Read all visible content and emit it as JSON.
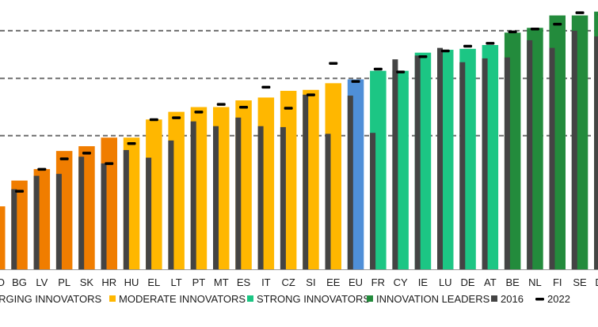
{
  "chart_data": {
    "type": "bar",
    "categories": [
      "RO",
      "BG",
      "LV",
      "PL",
      "SK",
      "HR",
      "HU",
      "EL",
      "LT",
      "PT",
      "MT",
      "ES",
      "IT",
      "CZ",
      "SI",
      "EE",
      "EU",
      "FR",
      "CY",
      "IE",
      "LU",
      "DE",
      "AT",
      "BE",
      "NL",
      "FI",
      "SE",
      "DK"
    ],
    "groups": [
      "EMERGING",
      "EMERGING",
      "EMERGING",
      "EMERGING",
      "EMERGING",
      "EMERGING",
      "MODERATE",
      "MODERATE",
      "MODERATE",
      "MODERATE",
      "MODERATE",
      "MODERATE",
      "MODERATE",
      "MODERATE",
      "MODERATE",
      "MODERATE",
      "EU",
      "STRONG",
      "STRONG",
      "STRONG",
      "STRONG",
      "STRONG",
      "STRONG",
      "LEADER",
      "LEADER",
      "LEADER",
      "LEADER",
      "LEADER"
    ],
    "series": [
      {
        "values": [
          33.0,
          46.5,
          52.5,
          62.0,
          64.5,
          69.0,
          69.0,
          78.5,
          82.5,
          85.0,
          85.0,
          88.5,
          90.0,
          93.5,
          94.0,
          97.5,
          99.5,
          104.0,
          104.0,
          113.5,
          115.0,
          115.5,
          117.5,
          124.0,
          126.5,
          133.0,
          133.0,
          135.0
        ]
      },
      {
        "name": "2016",
        "values": [
          0,
          42.0,
          49.0,
          50.0,
          59.0,
          55.5,
          62.5,
          58.5,
          67.5,
          77.5,
          75.0,
          79.5,
          75.0,
          74.5,
          91.5,
          71.0,
          91.0,
          71.5,
          110.0,
          112.0,
          116.0,
          108.5,
          110.5,
          111.0,
          120.0,
          116.0,
          125.0,
          122.0
        ]
      },
      {
        "name": "2022",
        "values": [
          0,
          41.0,
          52.5,
          58.0,
          61.0,
          55.5,
          66.0,
          78.5,
          79.5,
          82.5,
          86.5,
          85.0,
          95.5,
          84.5,
          91.5,
          108.0,
          98.5,
          105.0,
          103.5,
          111.5,
          114.5,
          117.0,
          118.5,
          124.5,
          126.0,
          128.5,
          134.5,
          133.5
        ]
      }
    ],
    "gridlines": [
      70,
      100,
      125
    ],
    "grid": "dashed horizontal",
    "ylim": [
      0,
      140
    ],
    "legend": [
      {
        "name": "EMERGING INNOVATORS",
        "color": "#f07d00"
      },
      {
        "name": "MODERATE INNOVATORS",
        "color": "#ffb700"
      },
      {
        "name": "STRONG INNOVATORS",
        "color": "#1cc684"
      },
      {
        "name": "INNOVATION LEADERS",
        "color": "#238b3c"
      },
      {
        "name": "2016",
        "color": "#444444"
      },
      {
        "name": "2022",
        "color": "#000000"
      }
    ],
    "legend_placement": "bottom",
    "colors": {
      "EMERGING": "#f07d00",
      "MODERATE": "#ffb700",
      "EU": "#4f8fd8",
      "STRONG": "#1cc684",
      "LEADER": "#238b3c",
      "marker_2016": "#444444",
      "marker_2022": "#000000",
      "grid": "#6e6e6e",
      "baseline": "#9a9a9a"
    }
  }
}
